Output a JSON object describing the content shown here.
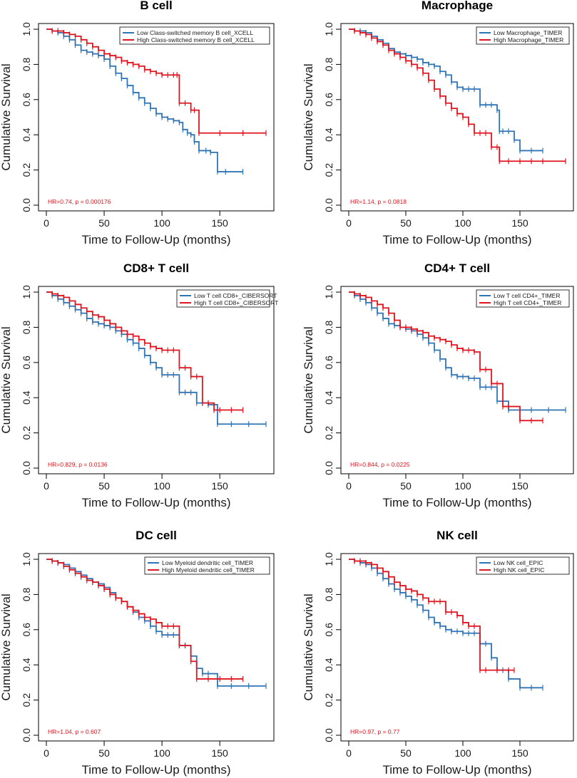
{
  "colors": {
    "low": "#2f74b5",
    "high": "#e0141e",
    "annotation": "#e0141e",
    "axis": "#000000"
  },
  "chart_data": [
    {
      "type": "line",
      "title": "B cell",
      "xlabel": "Time to Follow-Up (months)",
      "ylabel": "Cumulative Survival",
      "xlim": [
        0,
        190
      ],
      "ylim": [
        0,
        1
      ],
      "xticks": [
        0,
        50,
        100,
        150
      ],
      "yticks": [
        0.0,
        0.2,
        0.4,
        0.6,
        0.8,
        1.0
      ],
      "annotation": "HR=0.74, p = 0.000176",
      "series": [
        {
          "name": "Low Class-switched memory B cell_XCELL",
          "group": "low",
          "x": [
            0,
            5,
            10,
            15,
            20,
            25,
            30,
            35,
            40,
            45,
            50,
            55,
            60,
            65,
            70,
            75,
            80,
            85,
            90,
            95,
            100,
            105,
            110,
            115,
            118,
            122,
            125,
            128,
            132,
            138,
            142,
            148,
            155,
            170
          ],
          "y": [
            1,
            0.99,
            0.98,
            0.96,
            0.94,
            0.91,
            0.88,
            0.87,
            0.86,
            0.85,
            0.83,
            0.79,
            0.75,
            0.72,
            0.68,
            0.64,
            0.61,
            0.58,
            0.55,
            0.52,
            0.5,
            0.49,
            0.48,
            0.47,
            0.43,
            0.41,
            0.4,
            0.36,
            0.31,
            0.31,
            0.3,
            0.19,
            0.19,
            0.19
          ]
        },
        {
          "name": "High Class-switched memory B cell_XCELL",
          "group": "high",
          "x": [
            0,
            5,
            10,
            15,
            20,
            25,
            30,
            35,
            40,
            45,
            50,
            55,
            60,
            65,
            70,
            75,
            80,
            85,
            90,
            95,
            100,
            105,
            110,
            113,
            115,
            120,
            125,
            128,
            132,
            150,
            170,
            190
          ],
          "y": [
            1,
            0.99,
            0.99,
            0.98,
            0.97,
            0.96,
            0.94,
            0.92,
            0.9,
            0.88,
            0.86,
            0.85,
            0.84,
            0.82,
            0.81,
            0.8,
            0.79,
            0.77,
            0.76,
            0.75,
            0.74,
            0.74,
            0.74,
            0.74,
            0.58,
            0.58,
            0.54,
            0.54,
            0.41,
            0.41,
            0.41,
            0.41
          ]
        }
      ]
    },
    {
      "type": "line",
      "title": "Macrophage",
      "xlabel": "Time to Follow-Up (months)",
      "ylabel": "Cumulative Survival",
      "xlim": [
        0,
        190
      ],
      "ylim": [
        0,
        1
      ],
      "xticks": [
        0,
        50,
        100,
        150
      ],
      "yticks": [
        0.0,
        0.2,
        0.4,
        0.6,
        0.8,
        1.0
      ],
      "annotation": "HR=1.14, p = 0.0818",
      "series": [
        {
          "name": "Low Macrophage_TIMER",
          "group": "low",
          "x": [
            0,
            5,
            10,
            15,
            20,
            25,
            30,
            35,
            40,
            45,
            50,
            55,
            60,
            65,
            70,
            75,
            80,
            85,
            90,
            95,
            100,
            105,
            110,
            115,
            120,
            125,
            130,
            132,
            135,
            140,
            145,
            150,
            160,
            170
          ],
          "y": [
            1,
            0.99,
            0.99,
            0.98,
            0.96,
            0.94,
            0.92,
            0.89,
            0.87,
            0.86,
            0.85,
            0.84,
            0.83,
            0.81,
            0.8,
            0.79,
            0.76,
            0.74,
            0.7,
            0.67,
            0.66,
            0.66,
            0.66,
            0.57,
            0.57,
            0.57,
            0.54,
            0.42,
            0.42,
            0.42,
            0.37,
            0.31,
            0.31,
            0.31
          ]
        },
        {
          "name": "High Macrophage_TIMER",
          "group": "high",
          "x": [
            0,
            5,
            10,
            15,
            20,
            25,
            30,
            35,
            40,
            45,
            50,
            55,
            60,
            65,
            70,
            75,
            80,
            85,
            90,
            95,
            100,
            105,
            110,
            115,
            120,
            125,
            130,
            132,
            140,
            150,
            160,
            170,
            190
          ],
          "y": [
            1,
            0.99,
            0.98,
            0.97,
            0.95,
            0.93,
            0.91,
            0.88,
            0.86,
            0.84,
            0.82,
            0.8,
            0.78,
            0.75,
            0.71,
            0.66,
            0.62,
            0.58,
            0.55,
            0.52,
            0.5,
            0.46,
            0.41,
            0.41,
            0.41,
            0.33,
            0.33,
            0.25,
            0.25,
            0.25,
            0.25,
            0.25,
            0.25
          ]
        }
      ]
    },
    {
      "type": "line",
      "title": "CD8+ T cell",
      "xlabel": "Time to Follow-Up (months)",
      "ylabel": "Cumulative Survival",
      "xlim": [
        0,
        190
      ],
      "ylim": [
        0,
        1
      ],
      "xticks": [
        0,
        50,
        100,
        150
      ],
      "yticks": [
        0.0,
        0.2,
        0.4,
        0.6,
        0.8,
        1.0
      ],
      "annotation": "HR=0.829, p = 0.0136",
      "series": [
        {
          "name": "Low T cell CD8+_CIBERSORT",
          "group": "low",
          "x": [
            0,
            5,
            10,
            15,
            20,
            25,
            30,
            35,
            40,
            45,
            50,
            55,
            60,
            65,
            70,
            75,
            80,
            85,
            90,
            95,
            100,
            105,
            110,
            115,
            120,
            125,
            130,
            135,
            140,
            148,
            160,
            175,
            190
          ],
          "y": [
            1,
            0.98,
            0.96,
            0.94,
            0.92,
            0.9,
            0.88,
            0.85,
            0.83,
            0.82,
            0.81,
            0.8,
            0.78,
            0.76,
            0.73,
            0.71,
            0.68,
            0.64,
            0.6,
            0.57,
            0.53,
            0.53,
            0.53,
            0.43,
            0.43,
            0.43,
            0.37,
            0.37,
            0.36,
            0.25,
            0.25,
            0.25,
            0.25
          ]
        },
        {
          "name": "High T cell CD8+_CIBERSORT",
          "group": "high",
          "x": [
            0,
            5,
            10,
            15,
            20,
            25,
            30,
            35,
            40,
            45,
            50,
            55,
            60,
            65,
            70,
            75,
            80,
            85,
            90,
            95,
            100,
            105,
            110,
            115,
            120,
            125,
            130,
            135,
            140,
            145,
            150,
            160,
            170
          ],
          "y": [
            1,
            0.99,
            0.98,
            0.97,
            0.95,
            0.93,
            0.91,
            0.89,
            0.87,
            0.86,
            0.84,
            0.82,
            0.8,
            0.78,
            0.76,
            0.75,
            0.73,
            0.71,
            0.69,
            0.68,
            0.67,
            0.67,
            0.67,
            0.57,
            0.57,
            0.52,
            0.52,
            0.37,
            0.37,
            0.33,
            0.33,
            0.33,
            0.33
          ]
        }
      ]
    },
    {
      "type": "line",
      "title": "CD4+ T cell",
      "xlabel": "Time to Follow-Up (months)",
      "ylabel": "Cumulative Survival",
      "xlim": [
        0,
        190
      ],
      "ylim": [
        0,
        1
      ],
      "xticks": [
        0,
        50,
        100,
        150
      ],
      "yticks": [
        0.0,
        0.2,
        0.4,
        0.6,
        0.8,
        1.0
      ],
      "annotation": "HR=0.844, p = 0.0225",
      "series": [
        {
          "name": "Low T cell CD4+_TIMER",
          "group": "low",
          "x": [
            0,
            5,
            10,
            15,
            20,
            25,
            30,
            35,
            40,
            45,
            50,
            55,
            60,
            65,
            70,
            75,
            80,
            85,
            90,
            95,
            100,
            105,
            110,
            115,
            120,
            125,
            130,
            135,
            140,
            150,
            160,
            175,
            190
          ],
          "y": [
            1,
            0.98,
            0.96,
            0.94,
            0.91,
            0.88,
            0.85,
            0.82,
            0.81,
            0.8,
            0.79,
            0.78,
            0.76,
            0.74,
            0.71,
            0.67,
            0.62,
            0.57,
            0.53,
            0.52,
            0.52,
            0.51,
            0.51,
            0.46,
            0.46,
            0.46,
            0.38,
            0.38,
            0.33,
            0.33,
            0.33,
            0.33,
            0.33
          ]
        },
        {
          "name": "High T cell CD4+_TIMER",
          "group": "high",
          "x": [
            0,
            5,
            10,
            15,
            20,
            25,
            30,
            35,
            40,
            45,
            50,
            55,
            60,
            65,
            70,
            75,
            80,
            85,
            90,
            95,
            100,
            105,
            110,
            115,
            120,
            125,
            130,
            135,
            140,
            150,
            160,
            170
          ],
          "y": [
            1,
            0.99,
            0.98,
            0.97,
            0.95,
            0.93,
            0.91,
            0.88,
            0.84,
            0.8,
            0.8,
            0.79,
            0.78,
            0.77,
            0.75,
            0.74,
            0.73,
            0.72,
            0.7,
            0.68,
            0.67,
            0.67,
            0.66,
            0.56,
            0.56,
            0.48,
            0.48,
            0.35,
            0.35,
            0.27,
            0.27,
            0.27
          ]
        }
      ]
    },
    {
      "type": "line",
      "title": "DC cell",
      "xlabel": "Time to Follow-Up (months)",
      "ylabel": "Cumulative Survival",
      "xlim": [
        0,
        190
      ],
      "ylim": [
        0,
        1
      ],
      "xticks": [
        0,
        50,
        100,
        150
      ],
      "yticks": [
        0.0,
        0.2,
        0.4,
        0.6,
        0.8,
        1.0
      ],
      "annotation": "HR=1.04, p = 0.607",
      "series": [
        {
          "name": "Low Myeloid dendritic cell_TIMER",
          "group": "low",
          "x": [
            0,
            5,
            10,
            15,
            20,
            25,
            30,
            35,
            40,
            45,
            50,
            55,
            60,
            65,
            70,
            75,
            80,
            85,
            90,
            95,
            100,
            105,
            110,
            115,
            120,
            125,
            130,
            135,
            140,
            148,
            160,
            175,
            190
          ],
          "y": [
            1,
            0.99,
            0.98,
            0.97,
            0.95,
            0.93,
            0.91,
            0.89,
            0.87,
            0.86,
            0.84,
            0.81,
            0.78,
            0.76,
            0.73,
            0.7,
            0.67,
            0.65,
            0.62,
            0.59,
            0.57,
            0.57,
            0.57,
            0.51,
            0.51,
            0.45,
            0.38,
            0.35,
            0.35,
            0.28,
            0.28,
            0.28,
            0.28
          ]
        },
        {
          "name": "High Myeloid dendritic cell_TIMER",
          "group": "high",
          "x": [
            0,
            5,
            10,
            15,
            20,
            25,
            30,
            35,
            40,
            45,
            50,
            55,
            60,
            65,
            70,
            75,
            80,
            85,
            90,
            95,
            100,
            105,
            110,
            115,
            120,
            125,
            130,
            140,
            150,
            160,
            170
          ],
          "y": [
            1,
            0.99,
            0.98,
            0.96,
            0.94,
            0.92,
            0.9,
            0.88,
            0.87,
            0.85,
            0.83,
            0.8,
            0.78,
            0.76,
            0.73,
            0.71,
            0.69,
            0.67,
            0.66,
            0.64,
            0.62,
            0.62,
            0.62,
            0.51,
            0.51,
            0.42,
            0.32,
            0.32,
            0.32,
            0.32,
            0.32
          ]
        }
      ]
    },
    {
      "type": "line",
      "title": "NK cell",
      "xlabel": "Time to Follow-Up (months)",
      "ylabel": "Cumulative Survival",
      "xlim": [
        0,
        190
      ],
      "ylim": [
        0,
        1
      ],
      "xticks": [
        0,
        50,
        100,
        150
      ],
      "yticks": [
        0.0,
        0.2,
        0.4,
        0.6,
        0.8,
        1.0
      ],
      "annotation": "HR=0.97, p = 0.77",
      "series": [
        {
          "name": "Low NK cell_EPIC",
          "group": "low",
          "x": [
            0,
            5,
            10,
            15,
            20,
            25,
            30,
            35,
            40,
            45,
            50,
            55,
            60,
            65,
            70,
            75,
            80,
            85,
            90,
            95,
            100,
            105,
            110,
            115,
            120,
            125,
            130,
            135,
            140,
            150,
            160,
            170
          ],
          "y": [
            1,
            0.99,
            0.98,
            0.97,
            0.95,
            0.92,
            0.89,
            0.86,
            0.83,
            0.81,
            0.79,
            0.77,
            0.74,
            0.71,
            0.67,
            0.64,
            0.62,
            0.6,
            0.59,
            0.59,
            0.58,
            0.58,
            0.58,
            0.52,
            0.52,
            0.44,
            0.37,
            0.37,
            0.32,
            0.27,
            0.27,
            0.27
          ]
        },
        {
          "name": "High NK cell_EPIC",
          "group": "high",
          "x": [
            0,
            5,
            10,
            15,
            20,
            25,
            30,
            35,
            40,
            45,
            50,
            55,
            60,
            65,
            70,
            75,
            80,
            85,
            90,
            95,
            100,
            105,
            110,
            115,
            120,
            130,
            140,
            145
          ],
          "y": [
            1,
            0.99,
            0.99,
            0.98,
            0.97,
            0.95,
            0.93,
            0.9,
            0.87,
            0.85,
            0.83,
            0.82,
            0.8,
            0.78,
            0.76,
            0.76,
            0.76,
            0.7,
            0.7,
            0.68,
            0.64,
            0.62,
            0.62,
            0.37,
            0.37,
            0.37,
            0.37,
            0.37
          ]
        }
      ]
    }
  ]
}
